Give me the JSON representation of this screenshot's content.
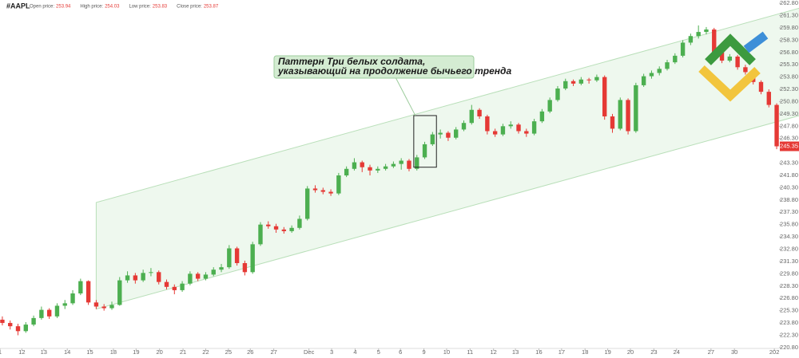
{
  "chart_data": {
    "type": "candlestick",
    "title": "#AAPL",
    "header": [
      {
        "label": "Open price:",
        "value": 253.94
      },
      {
        "label": "High price:",
        "value": 254.03
      },
      {
        "label": "Low price:",
        "value": 253.83
      },
      {
        "label": "Close price:",
        "value": 253.87
      }
    ],
    "up_color": "#4caf50",
    "down_color": "#e53935",
    "open": [
      224.2,
      223.8,
      223.4,
      222.8,
      223.6,
      224.4,
      225.4,
      224.6,
      225.9,
      226.2,
      227.4,
      228.9,
      226.3,
      225.8,
      225.6,
      226.0,
      229.0,
      229.6,
      229.0,
      229.9,
      230.0,
      228.8,
      228.2,
      227.8,
      228.6,
      229.8,
      229.2,
      229.7,
      230.3,
      230.6,
      232.9,
      231.1,
      230.0,
      233.4,
      235.8,
      235.6,
      235.2,
      235.0,
      235.4,
      236.5,
      240.2,
      240.0,
      239.8,
      239.6,
      241.8,
      242.6,
      243.4,
      242.8,
      242.4,
      242.6,
      242.9,
      243.2,
      243.6,
      242.6,
      244.0,
      245.6,
      246.8,
      247.0,
      246.4,
      247.4,
      248.2,
      249.8,
      249.0,
      247.2,
      246.8,
      247.8,
      248.0,
      247.2,
      246.9,
      248.4,
      249.6,
      251.0,
      252.4,
      253.3,
      253.0,
      253.5,
      253.4,
      253.8,
      249.0,
      247.5,
      251.0,
      247.2,
      252.8,
      253.9,
      254.3,
      254.8,
      255.6,
      256.4,
      258.0,
      258.8,
      259.3,
      259.6,
      256.8,
      255.8,
      256.3,
      255.0,
      254.4,
      253.2,
      252.0,
      250.4
    ],
    "high": [
      224.6,
      224.1,
      223.7,
      223.9,
      224.7,
      225.8,
      225.6,
      226.2,
      226.6,
      227.8,
      229.2,
      229.0,
      226.6,
      226.1,
      226.4,
      229.4,
      230.1,
      229.9,
      230.3,
      230.5,
      230.2,
      229.1,
      228.5,
      228.9,
      230.1,
      230.0,
      230.0,
      230.6,
      231.0,
      233.3,
      233.1,
      231.4,
      233.7,
      236.1,
      236.2,
      235.9,
      235.5,
      235.7,
      236.9,
      240.5,
      240.6,
      240.3,
      240.1,
      242.1,
      242.9,
      243.9,
      243.6,
      243.1,
      242.9,
      243.2,
      243.5,
      243.9,
      243.8,
      244.3,
      245.9,
      247.1,
      247.4,
      247.2,
      247.7,
      248.5,
      250.4,
      250.0,
      249.2,
      247.5,
      248.1,
      248.4,
      248.2,
      247.5,
      248.7,
      249.9,
      251.3,
      252.7,
      253.6,
      253.5,
      253.8,
      253.7,
      254.1,
      254.0,
      249.3,
      251.3,
      251.2,
      253.1,
      254.2,
      254.6,
      255.1,
      255.9,
      256.7,
      258.3,
      259.1,
      260.1,
      259.9,
      259.8,
      257.1,
      256.6,
      256.5,
      255.3,
      254.6,
      253.4,
      252.3,
      250.6
    ],
    "low": [
      223.5,
      223.0,
      222.3,
      222.6,
      223.4,
      224.2,
      224.3,
      224.4,
      225.5,
      226.0,
      227.2,
      226.0,
      225.5,
      225.3,
      225.4,
      225.9,
      228.7,
      228.6,
      228.8,
      229.5,
      228.5,
      227.9,
      227.3,
      227.6,
      228.4,
      228.9,
      229.0,
      229.5,
      230.0,
      230.4,
      230.8,
      229.6,
      229.8,
      233.2,
      235.3,
      234.8,
      234.7,
      234.8,
      235.2,
      236.3,
      239.7,
      239.5,
      239.3,
      239.4,
      241.6,
      242.4,
      242.2,
      241.8,
      242.1,
      242.4,
      242.7,
      242.5,
      242.3,
      242.4,
      243.8,
      245.4,
      246.3,
      246.0,
      246.2,
      247.2,
      248.0,
      248.7,
      246.8,
      246.5,
      246.6,
      247.5,
      246.9,
      246.5,
      246.7,
      248.2,
      249.4,
      250.8,
      252.2,
      252.7,
      252.8,
      253.0,
      253.2,
      248.6,
      247.0,
      247.3,
      246.8,
      247.0,
      252.6,
      253.6,
      254.0,
      254.6,
      255.4,
      256.2,
      257.7,
      258.5,
      259.0,
      256.5,
      255.5,
      255.6,
      254.7,
      254.1,
      252.9,
      251.7,
      250.1,
      245.0
    ],
    "close": [
      223.8,
      223.4,
      222.8,
      223.6,
      224.4,
      225.4,
      224.6,
      225.9,
      226.2,
      227.4,
      228.9,
      226.3,
      225.8,
      225.6,
      226.0,
      229.0,
      229.6,
      229.0,
      229.9,
      230.0,
      228.8,
      228.2,
      227.8,
      228.6,
      229.8,
      229.2,
      229.7,
      230.3,
      230.6,
      232.9,
      231.1,
      230.0,
      233.4,
      235.8,
      235.6,
      235.2,
      235.0,
      235.4,
      236.5,
      240.2,
      240.0,
      239.8,
      239.6,
      241.8,
      242.6,
      243.4,
      242.8,
      242.4,
      242.6,
      242.9,
      243.2,
      243.6,
      242.6,
      244.0,
      245.6,
      246.8,
      247.0,
      246.4,
      247.4,
      248.2,
      249.8,
      249.0,
      247.2,
      246.8,
      247.8,
      248.0,
      247.2,
      246.9,
      248.4,
      249.6,
      251.0,
      252.4,
      253.3,
      253.0,
      253.5,
      253.4,
      253.8,
      249.0,
      247.5,
      251.0,
      247.2,
      252.8,
      253.9,
      254.3,
      254.8,
      255.6,
      256.4,
      258.0,
      258.8,
      259.3,
      259.6,
      256.8,
      255.8,
      256.3,
      255.0,
      254.4,
      253.2,
      252.0,
      250.4,
      245.35
    ],
    "last_price": 245.35,
    "xlim": [
      -0.3,
      99.3
    ],
    "ylim": [
      220.4,
      263.2
    ],
    "xticks": [
      {
        "value": -0.3,
        "label": "1"
      },
      {
        "value": 2.5,
        "label": "12"
      },
      {
        "value": 5.3,
        "label": "13"
      },
      {
        "value": 8.3,
        "label": "14"
      },
      {
        "value": 11.2,
        "label": "15"
      },
      {
        "value": 14.2,
        "label": "18"
      },
      {
        "value": 17.1,
        "label": "19"
      },
      {
        "value": 20.1,
        "label": "20"
      },
      {
        "value": 23.1,
        "label": "21"
      },
      {
        "value": 26.0,
        "label": "22"
      },
      {
        "value": 28.9,
        "label": "25"
      },
      {
        "value": 31.7,
        "label": "26"
      },
      {
        "value": 34.7,
        "label": "27"
      },
      {
        "value": 39.2,
        "label": "Dec"
      },
      {
        "value": 42.1,
        "label": "3"
      },
      {
        "value": 45.1,
        "label": "4"
      },
      {
        "value": 48.1,
        "label": "5"
      },
      {
        "value": 50.9,
        "label": "6"
      },
      {
        "value": 53.9,
        "label": "9"
      },
      {
        "value": 56.8,
        "label": "10"
      },
      {
        "value": 59.8,
        "label": "11"
      },
      {
        "value": 62.8,
        "label": "12"
      },
      {
        "value": 65.6,
        "label": "13"
      },
      {
        "value": 68.6,
        "label": "16"
      },
      {
        "value": 71.5,
        "label": "17"
      },
      {
        "value": 74.5,
        "label": "18"
      },
      {
        "value": 77.4,
        "label": "19"
      },
      {
        "value": 80.3,
        "label": "20"
      },
      {
        "value": 83.3,
        "label": "23"
      },
      {
        "value": 86.2,
        "label": "24"
      },
      {
        "value": 90.6,
        "label": "27"
      },
      {
        "value": 93.6,
        "label": "30"
      },
      {
        "value": 98.7,
        "label": "202"
      }
    ],
    "yticks": [
      {
        "value": 262.8,
        "label": "262.80"
      },
      {
        "value": 261.3,
        "label": "261.30"
      },
      {
        "value": 259.8,
        "label": "259.80"
      },
      {
        "value": 258.3,
        "label": "258.30"
      },
      {
        "value": 256.8,
        "label": "256.80"
      },
      {
        "value": 255.3,
        "label": "255.30"
      },
      {
        "value": 253.8,
        "label": "253.80"
      },
      {
        "value": 252.3,
        "label": "252.30"
      },
      {
        "value": 250.8,
        "label": "250.80"
      },
      {
        "value": 249.3,
        "label": "249.30"
      },
      {
        "value": 247.8,
        "label": "247.80"
      },
      {
        "value": 246.3,
        "label": "246.30"
      },
      {
        "value": 243.3,
        "label": "243.30"
      },
      {
        "value": 241.8,
        "label": "241.80"
      },
      {
        "value": 240.3,
        "label": "240.30"
      },
      {
        "value": 238.8,
        "label": "238.80"
      },
      {
        "value": 237.3,
        "label": "237.30"
      },
      {
        "value": 235.8,
        "label": "235.80"
      },
      {
        "value": 234.3,
        "label": "234.30"
      },
      {
        "value": 232.8,
        "label": "232.80"
      },
      {
        "value": 231.3,
        "label": "231.30"
      },
      {
        "value": 229.8,
        "label": "229.80"
      },
      {
        "value": 228.3,
        "label": "228.30"
      },
      {
        "value": 226.8,
        "label": "226.80"
      },
      {
        "value": 225.3,
        "label": "225.30"
      },
      {
        "value": 223.8,
        "label": "223.80"
      },
      {
        "value": 222.3,
        "label": "222.30"
      },
      {
        "value": 220.8,
        "label": "220.80"
      }
    ],
    "channel": {
      "x": [
        12,
        101.9
      ],
      "upper": [
        238.5,
        262.2
      ],
      "lower": [
        225.5,
        249.1
      ]
    },
    "highlight": {
      "x": [
        52.6,
        55.5
      ],
      "y": [
        242.8,
        249.1
      ]
    },
    "callout": [
      "Паттерн Три белых солдата,",
      "указывающий на продолжение бычьего тренда"
    ]
  }
}
